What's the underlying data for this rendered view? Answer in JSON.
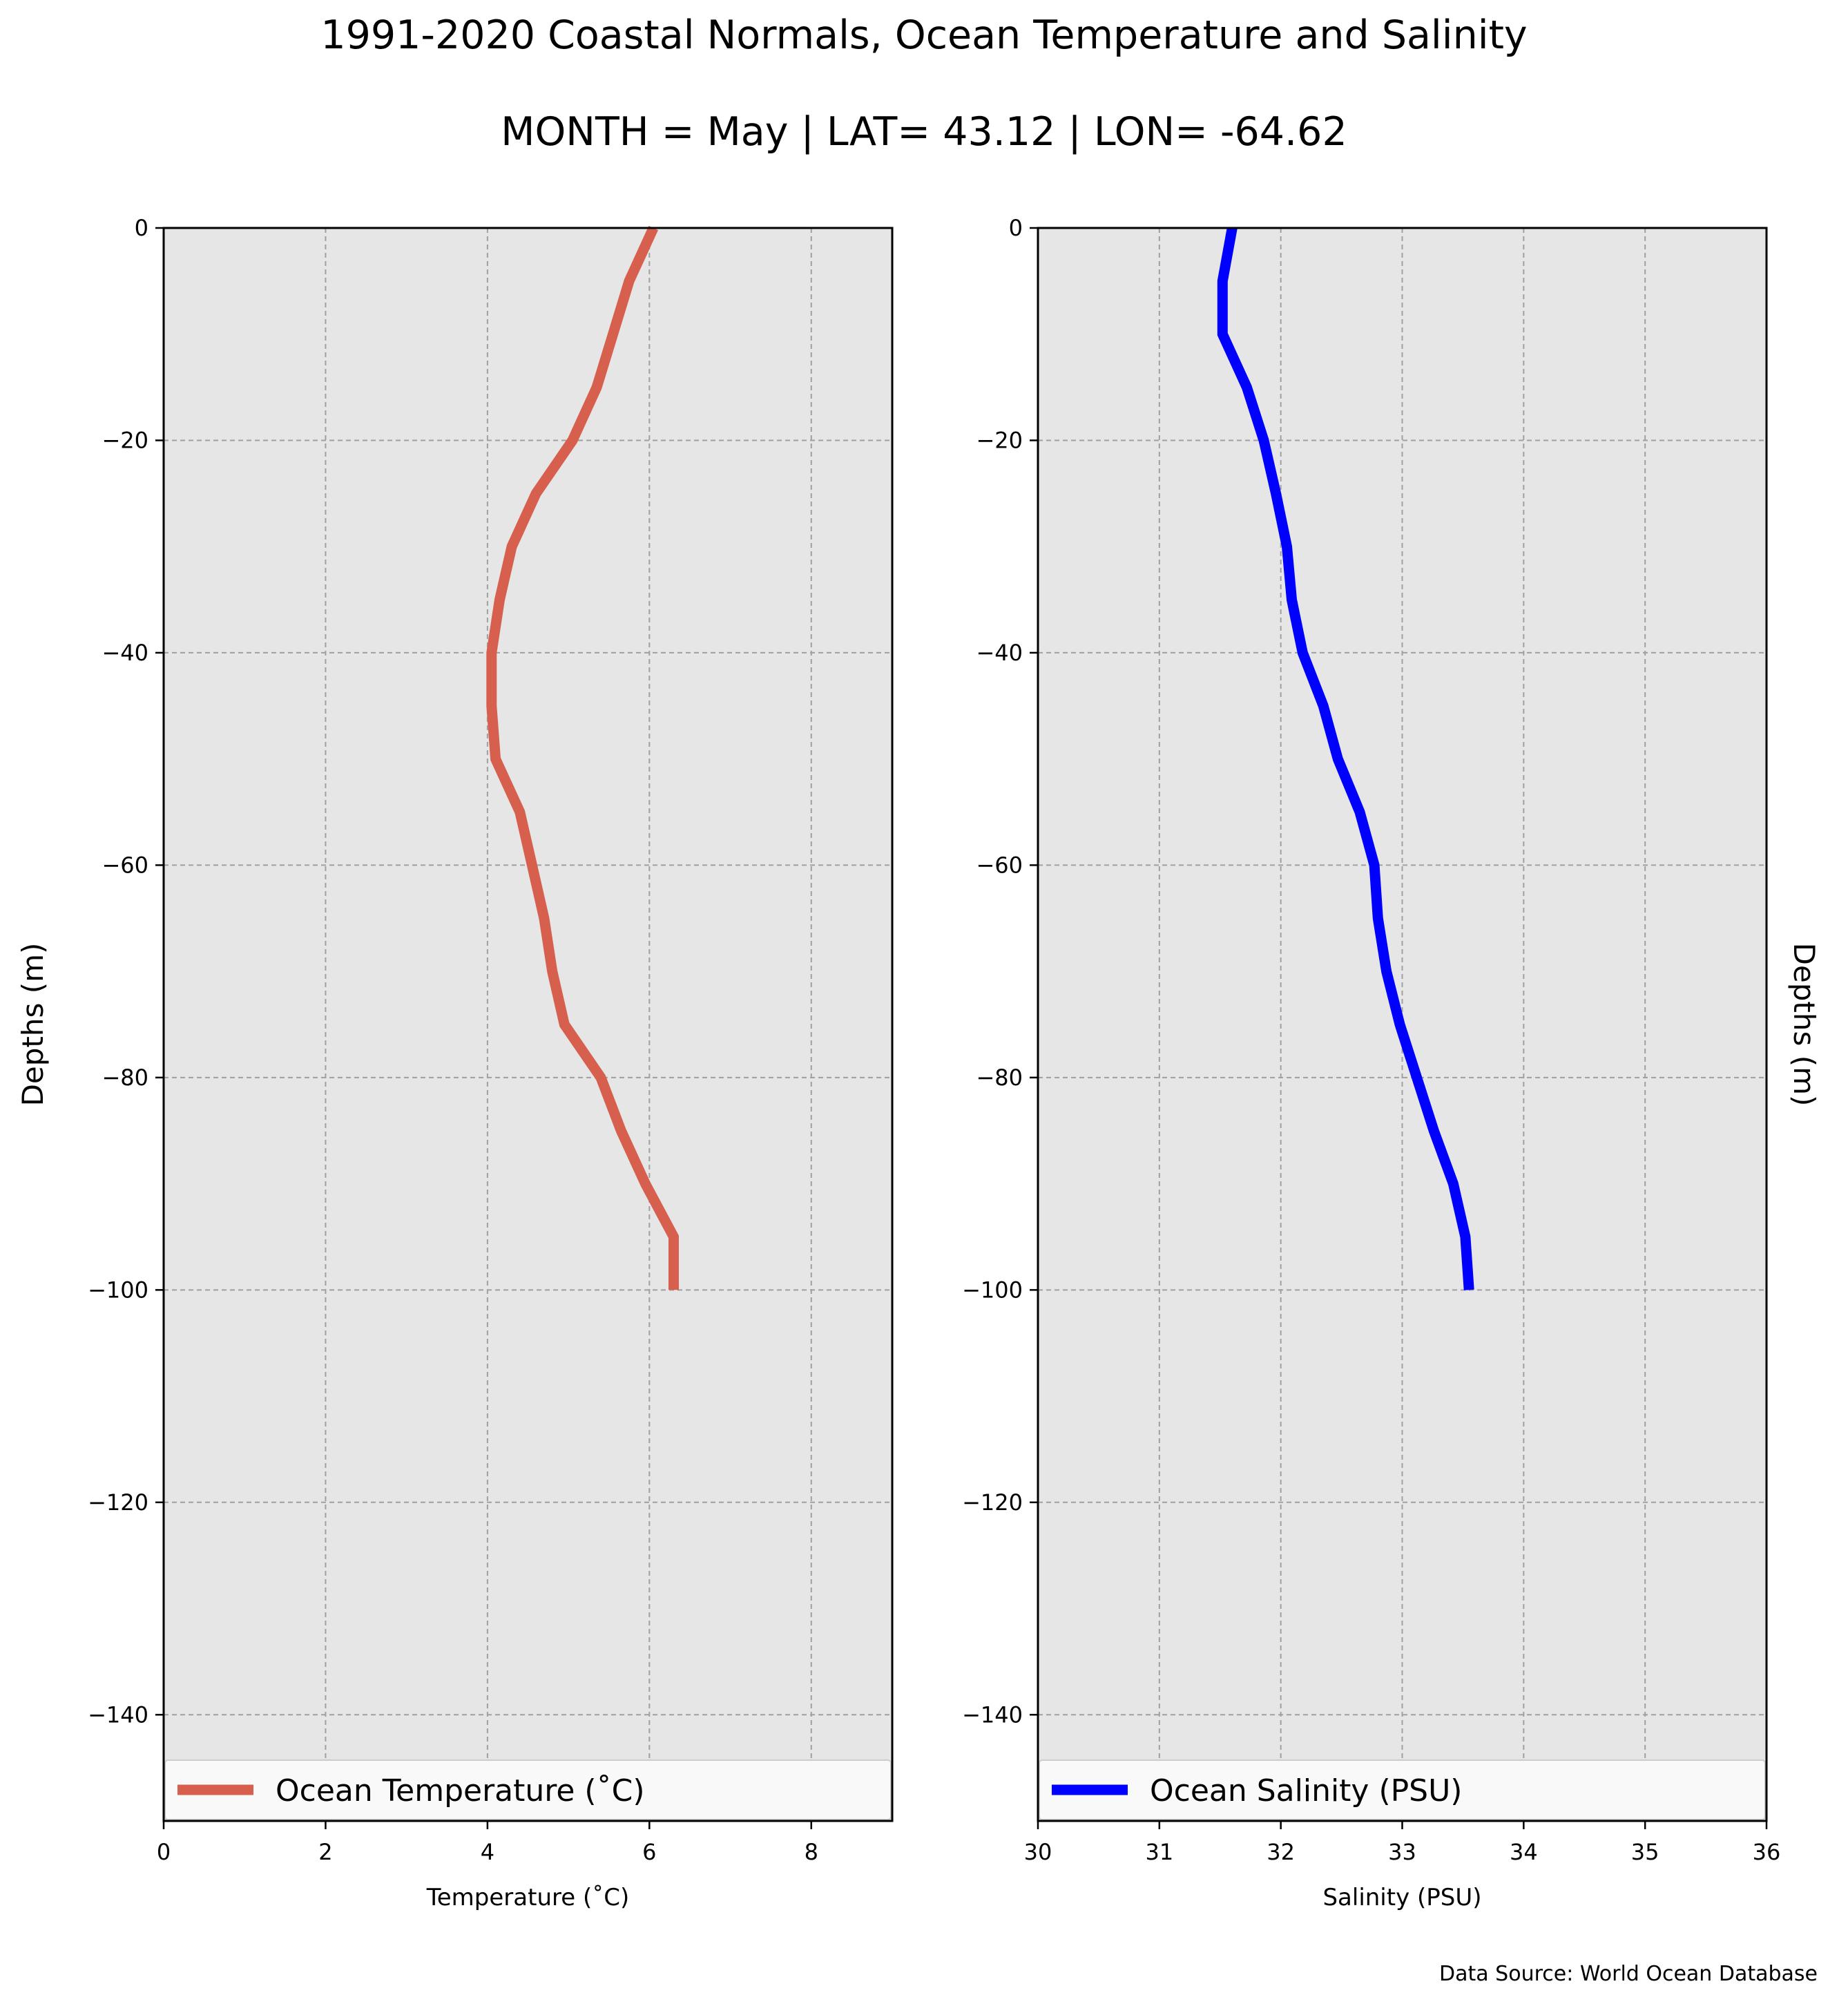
{
  "figure": {
    "title": "1991-2020 Coastal Normals, Ocean Temperature and Salinity",
    "subtitle": "MONTH = May | LAT= 43.12 | LON= -64.62",
    "source": "Data Source: World Ocean Database"
  },
  "chart_data": [
    {
      "type": "line",
      "xlabel": "Temperature ($^\\circ$C)",
      "xlabel_display": "Temperature (˚C)",
      "ylabel": "Depths (m)",
      "ylabel_side": "left",
      "xlim": [
        0,
        9
      ],
      "ylim": [
        -150,
        0
      ],
      "xticks": [
        0,
        2,
        4,
        6,
        8
      ],
      "yticks": [
        0,
        -20,
        -40,
        -60,
        -80,
        -100,
        -120,
        -140
      ],
      "xtick_labels": [
        "0",
        "2",
        "4",
        "6",
        "8"
      ],
      "ytick_labels": [
        "0",
        "−20",
        "−40",
        "−60",
        "−80",
        "−100",
        "−120",
        "−140"
      ],
      "grid": true,
      "background": "#e6e6e6",
      "legend_position": "bottom",
      "series": [
        {
          "name": "Ocean Temperature (˚C)",
          "color": "#d6604d",
          "x": [
            6.05,
            5.75,
            5.55,
            5.35,
            5.05,
            4.6,
            4.3,
            4.15,
            4.05,
            4.05,
            4.1,
            4.4,
            4.55,
            4.7,
            4.8,
            4.95,
            5.4,
            5.65,
            5.95,
            6.3,
            6.3
          ],
          "y": [
            0,
            -5,
            -10,
            -15,
            -20,
            -25,
            -30,
            -35,
            -40,
            -45,
            -50,
            -55,
            -60,
            -65,
            -70,
            -75,
            -80,
            -85,
            -90,
            -95,
            -100
          ]
        }
      ]
    },
    {
      "type": "line",
      "xlabel": "Salinity (PSU)",
      "ylabel": "Depths (m)",
      "ylabel_side": "right",
      "xlim": [
        30,
        36
      ],
      "ylim": [
        -150,
        0
      ],
      "xticks": [
        30,
        31,
        32,
        33,
        34,
        35,
        36
      ],
      "yticks": [
        0,
        -20,
        -40,
        -60,
        -80,
        -100,
        -120,
        -140
      ],
      "xtick_labels": [
        "30",
        "31",
        "32",
        "33",
        "34",
        "35",
        "36"
      ],
      "ytick_labels": [
        "0",
        "−20",
        "−40",
        "−60",
        "−80",
        "−100",
        "−120",
        "−140"
      ],
      "grid": true,
      "background": "#e6e6e6",
      "legend_position": "bottom",
      "series": [
        {
          "name": "Ocean Salinity (PSU)",
          "color": "#0000ff",
          "x": [
            31.6,
            31.52,
            31.52,
            31.72,
            31.86,
            31.96,
            32.05,
            32.09,
            32.18,
            32.35,
            32.47,
            32.65,
            32.77,
            32.8,
            32.87,
            32.98,
            33.12,
            33.26,
            33.42,
            33.52,
            33.55
          ],
          "y": [
            0,
            -5,
            -10,
            -15,
            -20,
            -25,
            -30,
            -35,
            -40,
            -45,
            -50,
            -55,
            -60,
            -65,
            -70,
            -75,
            -80,
            -85,
            -90,
            -95,
            -100
          ]
        }
      ]
    }
  ]
}
